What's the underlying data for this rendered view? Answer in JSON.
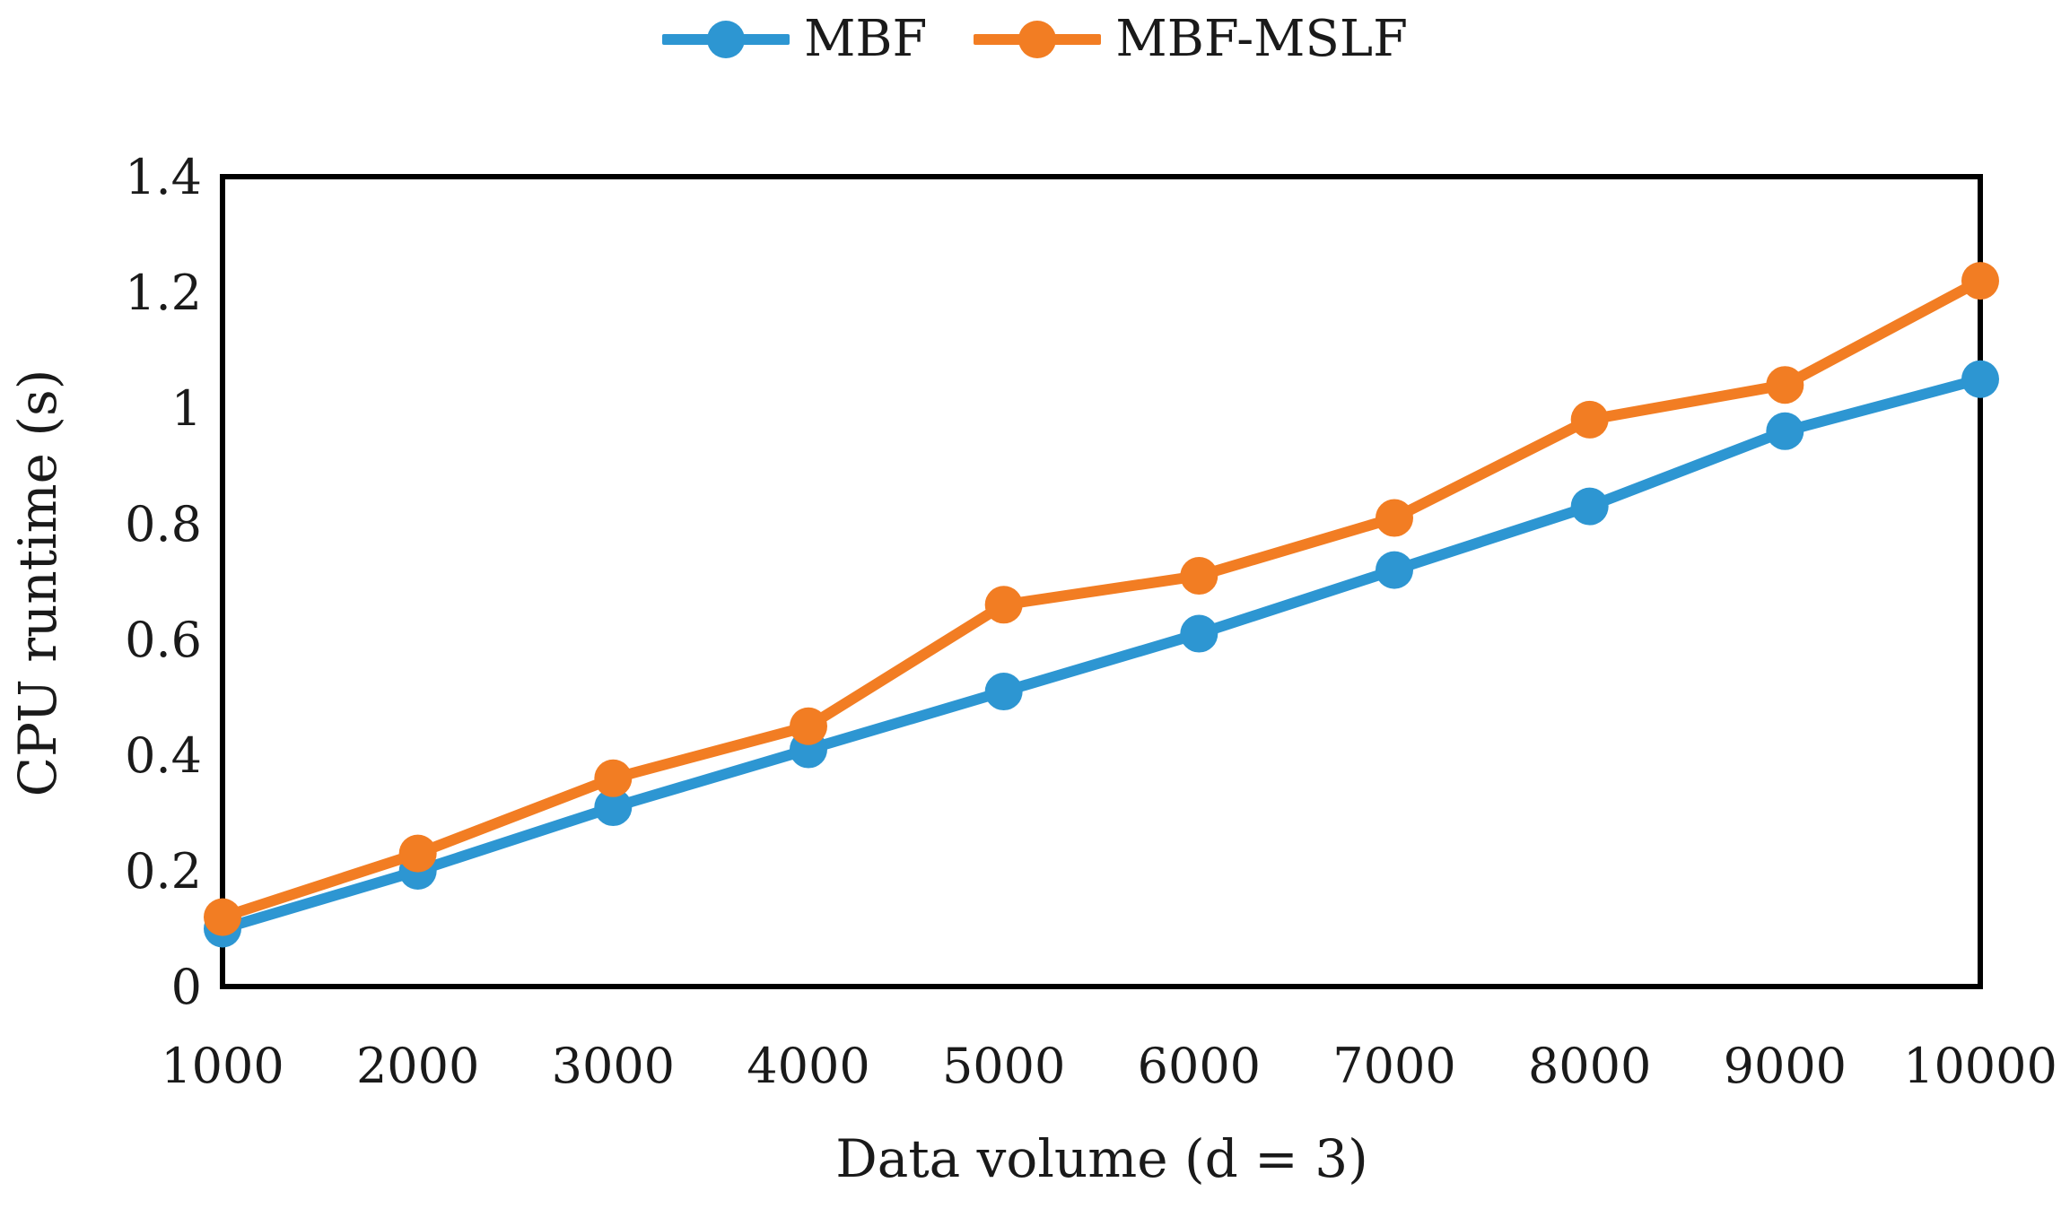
{
  "figure": {
    "background": "#ffffff",
    "axis_color": "#000000"
  },
  "legend": {
    "items": [
      {
        "label": "MBF",
        "color": "#2D96D2"
      },
      {
        "label": "MBF-MSLF",
        "color": "#F27D23"
      }
    ]
  },
  "chart_data": {
    "type": "line",
    "title": "",
    "xlabel": "Data volume (d = 3)",
    "ylabel": "CPU runtime (s)",
    "x": [
      1000,
      2000,
      3000,
      4000,
      5000,
      6000,
      7000,
      8000,
      9000,
      10000
    ],
    "x_tick_labels": [
      "1000",
      "2000",
      "3000",
      "4000",
      "5000",
      "6000",
      "7000",
      "8000",
      "9000",
      "10000"
    ],
    "y_tick_labels": [
      "0",
      "0.2",
      "0.4",
      "0.6",
      "0.8",
      "1",
      "1.2",
      "1.4"
    ],
    "ylim": [
      0,
      1.4
    ],
    "y_tick_step": 0.2,
    "grid": false,
    "legend_position": "top-center",
    "series": [
      {
        "name": "MBF",
        "color": "#2D96D2",
        "values": [
          0.1,
          0.2,
          0.31,
          0.41,
          0.51,
          0.61,
          0.72,
          0.83,
          0.96,
          1.05
        ]
      },
      {
        "name": "MBF-MSLF",
        "color": "#F27D23",
        "values": [
          0.12,
          0.23,
          0.36,
          0.45,
          0.66,
          0.71,
          0.81,
          0.98,
          1.04,
          1.22
        ]
      }
    ]
  }
}
